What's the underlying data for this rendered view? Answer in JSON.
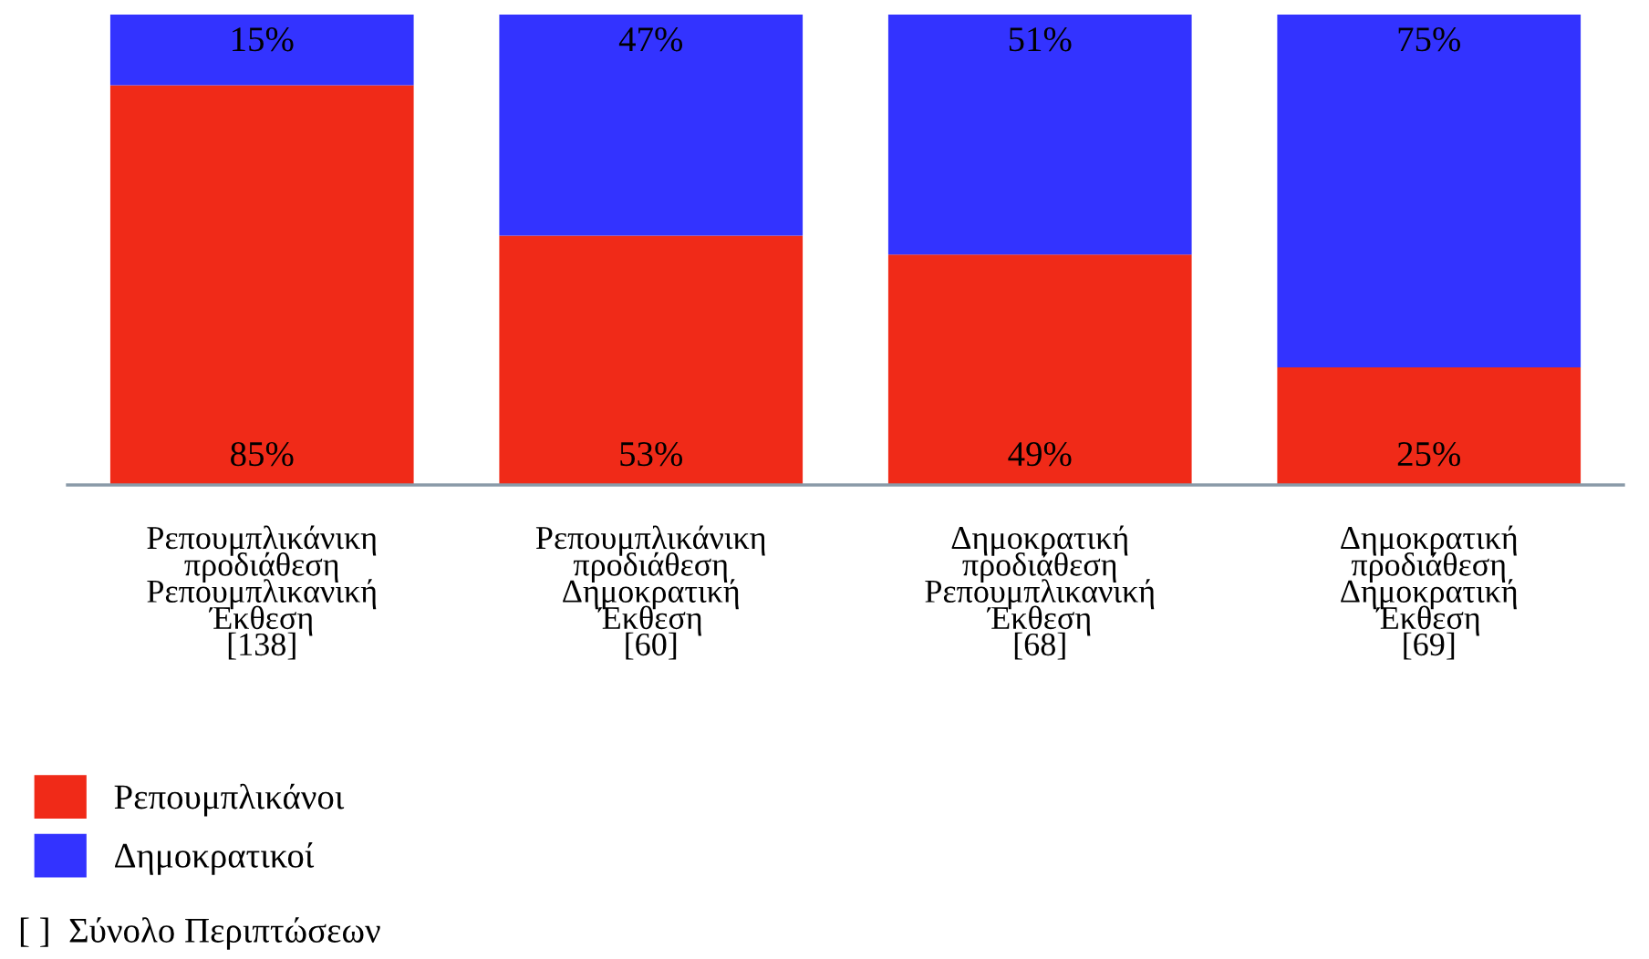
{
  "chart_data": {
    "type": "bar",
    "stacked": true,
    "data_labels": true,
    "legend": "bottom left",
    "grid": false,
    "tick_labels": "x",
    "categories": [
      "Ρεπουμπλικάνικη\nπροδιάθεση\nΡεπουμπλικανική\nΈκθεση\n[138]",
      "Ρεπουμπλικάνικη\nπροδιάθεση\nΔημοκρατική\nΈκθεση\n[60]",
      "Δημοκρατική\nπροδιάθεση\nΡεπουμπλικανική\nΈκθεση\n[68]",
      "Δημοκρατική\nπροδιάθεση\nΔημοκρατική\nΈκθεση\n[69]"
    ],
    "series": [
      {
        "name": "Ρεπουμπλικάνοι",
        "color": "#f02a18",
        "values": [
          85,
          53,
          49,
          25
        ],
        "value_labels": [
          "85%",
          "53%",
          "49%",
          "25%"
        ]
      },
      {
        "name": "Δημοκρατικοί",
        "color": "#3333ff",
        "values": [
          15,
          47,
          51,
          75
        ],
        "value_labels": [
          "15%",
          "47%",
          "51%",
          "75%"
        ]
      }
    ],
    "ylim": [
      0,
      100
    ],
    "annotations": [
      "[ ]  Σύνολο Περιπτώσεων"
    ]
  }
}
